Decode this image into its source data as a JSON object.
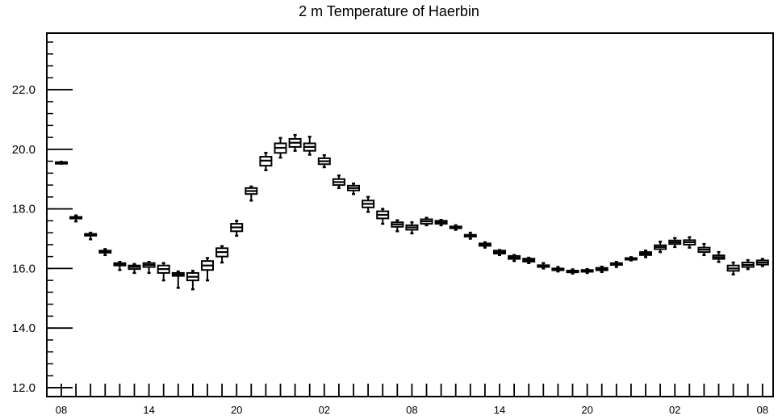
{
  "chart_data": {
    "type": "boxplot",
    "title": "2 m Temperature of Haerbin",
    "xlabel": "",
    "ylabel": "",
    "ylim": [
      11.7,
      23.9
    ],
    "y_ticks": [
      "12.0",
      "14.0",
      "16.0",
      "18.0",
      "20.0",
      "22.0"
    ],
    "x_ticks": [
      "08",
      "14",
      "20",
      "02",
      "08",
      "14",
      "20",
      "02",
      "08"
    ],
    "x_tick_steps": [
      0,
      6,
      12,
      18,
      24,
      30,
      36,
      42,
      48
    ],
    "grid": false,
    "series": [
      {
        "step_start": 0,
        "median": [
          19.55,
          17.7,
          17.13,
          16.57,
          16.15,
          16.05,
          16.12,
          15.98,
          15.8,
          15.72,
          16.1,
          16.55,
          17.38,
          18.6,
          19.62,
          20.05,
          20.22,
          20.08,
          19.6,
          18.9,
          18.7,
          18.17,
          17.8,
          17.48,
          17.38,
          17.58,
          17.55,
          17.38,
          17.1,
          16.8,
          16.55,
          16.37,
          16.28,
          16.08,
          15.97,
          15.9,
          15.92,
          15.98,
          16.15,
          16.32,
          16.5,
          16.72,
          16.88,
          16.88,
          16.63,
          16.38,
          16.0,
          16.12,
          16.2
        ],
        "q1": [
          19.53,
          17.68,
          17.1,
          16.53,
          16.1,
          15.98,
          16.05,
          15.85,
          15.75,
          15.6,
          15.95,
          16.4,
          17.25,
          18.5,
          19.45,
          19.88,
          20.08,
          19.95,
          19.5,
          18.8,
          18.62,
          18.05,
          17.68,
          17.4,
          17.3,
          17.5,
          17.5,
          17.35,
          17.07,
          16.76,
          16.5,
          16.32,
          16.23,
          16.05,
          15.94,
          15.87,
          15.89,
          15.94,
          16.12,
          16.3,
          16.45,
          16.65,
          16.82,
          16.8,
          16.55,
          16.32,
          15.92,
          16.05,
          16.13
        ],
        "q3": [
          19.57,
          17.73,
          17.16,
          16.6,
          16.18,
          16.1,
          16.18,
          16.1,
          15.85,
          15.85,
          16.25,
          16.68,
          17.5,
          18.7,
          19.75,
          20.2,
          20.35,
          20.2,
          19.7,
          19.0,
          18.78,
          18.28,
          17.92,
          17.55,
          17.45,
          17.65,
          17.6,
          17.41,
          17.13,
          16.84,
          16.6,
          16.42,
          16.33,
          16.11,
          16.0,
          15.93,
          15.95,
          16.02,
          16.18,
          16.35,
          16.55,
          16.78,
          16.94,
          16.95,
          16.7,
          16.44,
          16.1,
          16.2,
          16.27
        ],
        "low": [
          19.52,
          17.58,
          16.98,
          16.45,
          15.95,
          15.85,
          15.85,
          15.6,
          15.35,
          15.3,
          15.6,
          16.2,
          17.1,
          18.28,
          19.3,
          19.72,
          19.95,
          19.82,
          19.4,
          18.7,
          18.5,
          17.9,
          17.5,
          17.25,
          17.18,
          17.45,
          17.45,
          17.3,
          17.0,
          16.7,
          16.45,
          16.25,
          16.18,
          16.0,
          15.9,
          15.83,
          15.85,
          15.88,
          16.05,
          16.27,
          16.38,
          16.55,
          16.72,
          16.7,
          16.45,
          16.22,
          15.8,
          15.98,
          16.08
        ],
        "high": [
          19.58,
          17.78,
          17.2,
          16.65,
          16.22,
          16.15,
          16.22,
          16.18,
          15.9,
          15.92,
          16.35,
          16.75,
          17.6,
          18.75,
          19.88,
          20.38,
          20.48,
          20.42,
          19.8,
          19.12,
          18.85,
          18.4,
          18.0,
          17.62,
          17.55,
          17.7,
          17.63,
          17.45,
          17.2,
          16.88,
          16.62,
          16.45,
          16.36,
          16.18,
          16.05,
          15.97,
          15.98,
          16.06,
          16.22,
          16.38,
          16.6,
          16.9,
          17.02,
          17.05,
          16.82,
          16.55,
          16.2,
          16.28,
          16.32
        ]
      }
    ]
  }
}
